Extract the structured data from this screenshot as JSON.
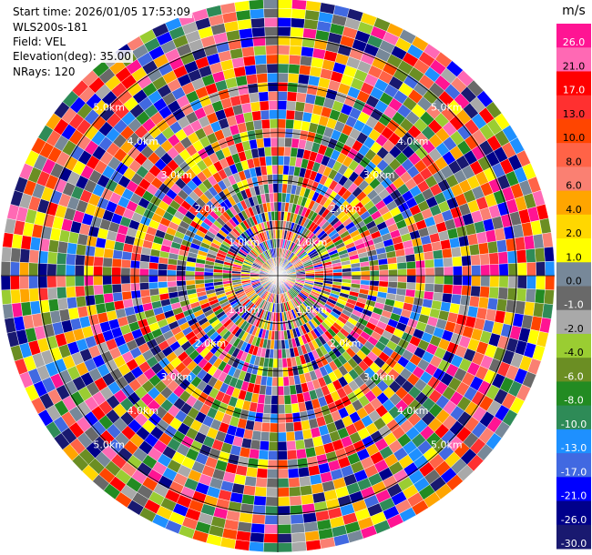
{
  "header": {
    "start_time": "Start time: 2026/01/05 17:53:09",
    "site": "WLS200s-181",
    "field": "Field: VEL",
    "elevation": "Elevation(deg): 35.00",
    "nrays": "NRays: 120"
  },
  "chart_data": {
    "type": "heatmap",
    "projection": "polar-ppi",
    "nrays": 120,
    "elevation_deg": 35.0,
    "range_rings_km": [
      1.0,
      2.0,
      3.0,
      4.0,
      5.0
    ],
    "range_ring_labels": [
      "1.0km",
      "2.0km",
      "3.0km",
      "4.0km",
      "5.0km"
    ],
    "max_range_km": 5.8,
    "colorbar": {
      "unit": "m/s",
      "tick_labels": [
        "26.0",
        "21.0",
        "17.0",
        "13.0",
        "10.0",
        "8.0",
        "6.0",
        "4.0",
        "2.0",
        "1.0",
        "0.0",
        "-1.0",
        "-2.0",
        "-4.0",
        "-6.0",
        "-8.0",
        "-10.0",
        "-13.0",
        "-17.0",
        "-21.0",
        "-26.0",
        "-30.0"
      ],
      "colors": [
        "#ff1493",
        "#ff69b4",
        "#ff0000",
        "#ff3030",
        "#ff4500",
        "#ff6347",
        "#fa8072",
        "#ffa500",
        "#ffd700",
        "#ffff00",
        "#778899",
        "#696969",
        "#a9a9a9",
        "#9acd32",
        "#6b8e23",
        "#228b22",
        "#2e8b57",
        "#1e90ff",
        "#4169e1",
        "#0000ff",
        "#00008b",
        "#191970"
      ]
    }
  }
}
